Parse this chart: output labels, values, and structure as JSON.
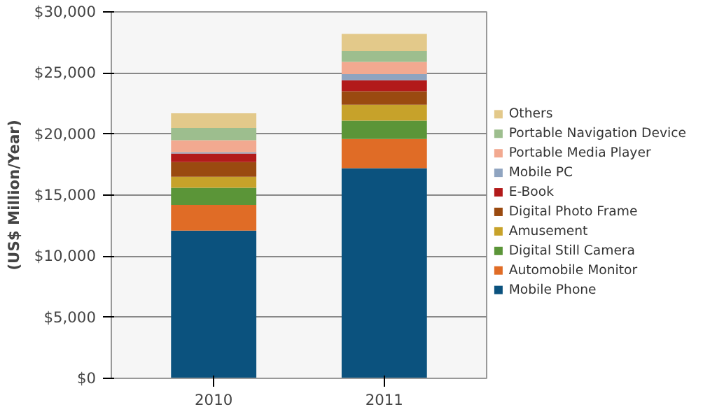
{
  "chart_data": {
    "type": "bar",
    "stacked": true,
    "ylabel": "(US$ Million/Year)",
    "categories": [
      "2010",
      "2011"
    ],
    "series": [
      {
        "name": "Mobile Phone",
        "color": "#0b527e",
        "values": [
          12100,
          17200
        ]
      },
      {
        "name": "Automobile Monitor",
        "color": "#e06c26",
        "values": [
          2100,
          2400
        ]
      },
      {
        "name": "Digital Still Camera",
        "color": "#5b9538",
        "values": [
          1400,
          1500
        ]
      },
      {
        "name": "Amusement",
        "color": "#c7a22a",
        "values": [
          900,
          1300
        ]
      },
      {
        "name": "Digital Photo Frame",
        "color": "#9a4a10",
        "values": [
          1200,
          1100
        ]
      },
      {
        "name": "E-Book",
        "color": "#b21a1a",
        "values": [
          700,
          900
        ]
      },
      {
        "name": "Mobile PC",
        "color": "#8fa4c0",
        "values": [
          100,
          500
        ]
      },
      {
        "name": "Portable Media Player",
        "color": "#f2a990",
        "values": [
          1000,
          1000
        ]
      },
      {
        "name": "Portable Navigation Device",
        "color": "#9dbe8e",
        "values": [
          1000,
          900
        ]
      },
      {
        "name": "Others",
        "color": "#e3c98a",
        "values": [
          1200,
          1400
        ]
      }
    ],
    "ylim": [
      0,
      30000
    ],
    "yticks": [
      {
        "value": 0,
        "label": "$0"
      },
      {
        "value": 5000,
        "label": "$5,000"
      },
      {
        "value": 10000,
        "label": "$10,000"
      },
      {
        "value": 15000,
        "label": "$15,000"
      },
      {
        "value": 20000,
        "label": "$20,000"
      },
      {
        "value": 25000,
        "label": "$25,000"
      },
      {
        "value": 30000,
        "label": "$30,000"
      }
    ],
    "grid": "y",
    "legend": "right"
  }
}
